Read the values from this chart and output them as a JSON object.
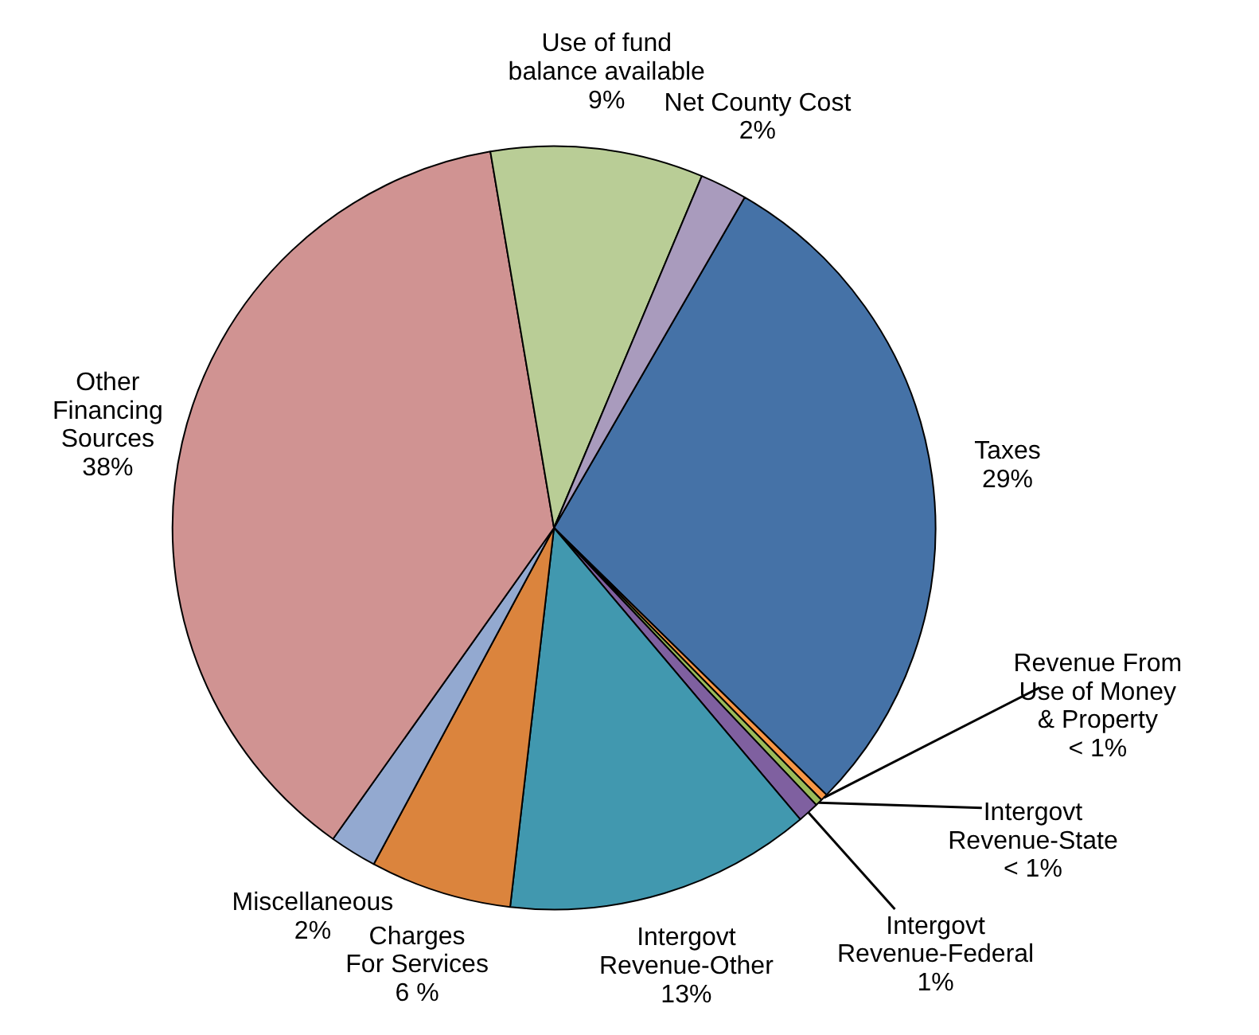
{
  "chart_data": {
    "type": "pie",
    "categories": [
      "Taxes",
      "Revenue From\nUse of Money\n& Property",
      "Intergovt\nRevenue-State",
      "Intergovt\nRevenue-Federal",
      "Intergovt\nRevenue-Other",
      "Charges\nFor Services",
      "Miscellaneous",
      "Other\nFinancing\nSources",
      "Use of fund\nbalance available",
      "Net County Cost"
    ],
    "values": [
      29,
      0.3,
      0.3,
      0.9,
      13,
      6,
      2,
      37.5,
      9,
      2
    ],
    "value_labels": [
      "29%",
      "< 1%",
      "< 1%",
      "1%",
      "13%",
      "6 %",
      "2%",
      "38%",
      "9%",
      "2%"
    ],
    "colors": [
      "#4572a7",
      "#f79646",
      "#9bbb59",
      "#7f60a0",
      "#4198af",
      "#db843d",
      "#93a9d0",
      "#d09392",
      "#b9cd96",
      "#a99bbd"
    ]
  }
}
